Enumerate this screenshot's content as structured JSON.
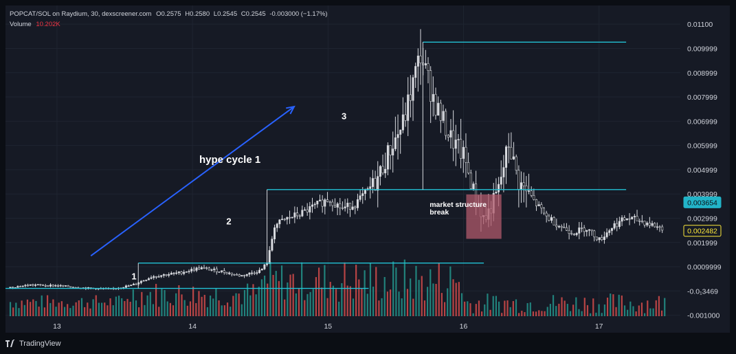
{
  "header": {
    "symbol_line": "POPCAT/SOL on Raydium, 30, dexscreener.com",
    "o_label": "O",
    "o_value": "0.2575",
    "h_label": "H",
    "h_value": "0.2580",
    "l_label": "L",
    "l_value": "0.2545",
    "c_label": "C",
    "c_value": "0.2545",
    "change": "-0.003000 (−1.17%)",
    "volume_label": "Volume",
    "volume_value": "10.202K"
  },
  "footer": {
    "brand": "TradingView"
  },
  "colors": {
    "up": "#26a69a",
    "down": "#ef5350",
    "candle": "#d9dbe0",
    "level": "#22c3d6",
    "arrow": "#2962ff",
    "box": "#b05a6b",
    "badge_cyan": "#22b4c8",
    "badge_yellow": "#ffeb3b"
  },
  "chart_data": {
    "type": "candlestick",
    "x_axis": {
      "tick_labels": [
        "13",
        "14",
        "15",
        "16",
        "17"
      ],
      "range": [
        12.62,
        17.6
      ]
    },
    "y_axis": {
      "tick_labels": [
        "0.01100",
        "0.009999",
        "0.008999",
        "0.007999",
        "0.006999",
        "0.005999",
        "0.004999",
        "0.003999",
        "0.002999",
        "0.001999",
        "0.0009999",
        "-0.0₁3469",
        "-0.001000"
      ],
      "tick_values": [
        0.011,
        0.009999,
        0.008999,
        0.007999,
        0.006999,
        0.005999,
        0.004999,
        0.003999,
        0.002999,
        0.001999,
        0.0009999,
        0.0,
        -0.001
      ],
      "range": [
        -0.00104,
        0.01143
      ]
    },
    "price_badges": [
      {
        "value": 0.003654,
        "label": "0.003654",
        "style": "cyan"
      },
      {
        "value": 0.002482,
        "label": "0.002482",
        "style": "yellow"
      }
    ],
    "price_path": [
      [
        12.65,
        0.00015
      ],
      [
        12.8,
        0.00025
      ],
      [
        13.0,
        0.00022
      ],
      [
        13.2,
        0.00012
      ],
      [
        13.4,
        8e-05
      ],
      [
        13.55,
        0.00024
      ],
      [
        13.7,
        0.0006
      ],
      [
        13.9,
        0.00075
      ],
      [
        14.05,
        0.00095
      ],
      [
        14.2,
        0.00082
      ],
      [
        14.35,
        0.00062
      ],
      [
        14.5,
        0.00085
      ],
      [
        14.55,
        0.0012
      ],
      [
        14.6,
        0.0027
      ],
      [
        14.7,
        0.003
      ],
      [
        14.8,
        0.0032
      ],
      [
        14.9,
        0.0035
      ],
      [
        15.0,
        0.0038
      ],
      [
        15.1,
        0.0034
      ],
      [
        15.2,
        0.0036
      ],
      [
        15.35,
        0.0045
      ],
      [
        15.45,
        0.0058
      ],
      [
        15.55,
        0.0069
      ],
      [
        15.62,
        0.0085
      ],
      [
        15.68,
        0.0098
      ],
      [
        15.72,
        0.0089
      ],
      [
        15.8,
        0.0075
      ],
      [
        15.9,
        0.0063
      ],
      [
        16.0,
        0.0055
      ],
      [
        16.08,
        0.0039
      ],
      [
        16.15,
        0.0029
      ],
      [
        16.25,
        0.0041
      ],
      [
        16.33,
        0.0061
      ],
      [
        16.4,
        0.0045
      ],
      [
        16.5,
        0.0038
      ],
      [
        16.6,
        0.0031
      ],
      [
        16.7,
        0.0027
      ],
      [
        16.8,
        0.0024
      ],
      [
        16.9,
        0.0026
      ],
      [
        17.0,
        0.0021
      ],
      [
        17.1,
        0.0027
      ],
      [
        17.2,
        0.003
      ],
      [
        17.3,
        0.0029
      ],
      [
        17.45,
        0.0026
      ]
    ],
    "levels": [
      {
        "label": "1",
        "x_from": 12.62,
        "x_to": 15.3,
        "y": 0.000105
      },
      {
        "label": "",
        "x_from": 13.6,
        "x_to": 16.15,
        "y": 0.00115
      },
      {
        "label": "2",
        "x_from": 14.55,
        "x_to": 17.2,
        "y": 0.00418
      },
      {
        "label": "3",
        "x_from": 15.7,
        "x_to": 17.2,
        "y": 0.01026
      }
    ],
    "annotations": [
      {
        "text": "hype cycle 1",
        "x": 14.05,
        "y": 0.00528
      },
      {
        "text": "1",
        "x": 13.55,
        "y": 0.00048
      },
      {
        "text": "2",
        "x": 14.25,
        "y": 0.00275
      },
      {
        "text": "3",
        "x": 15.1,
        "y": 0.00708
      },
      {
        "text": "market structure",
        "x": 15.75,
        "y": 0.00347
      },
      {
        "text": "break",
        "x": 15.75,
        "y": 0.00315
      }
    ],
    "arrow": {
      "from": [
        13.25,
        0.00145
      ],
      "to": [
        14.75,
        0.0076
      ]
    },
    "highlight_box": {
      "x_from": 16.02,
      "x_to": 16.28,
      "y_from": 0.00215,
      "y_to": 0.00398
    },
    "volume": {
      "x_range": [
        12.65,
        17.5
      ],
      "max_relative": 1.0
    }
  }
}
